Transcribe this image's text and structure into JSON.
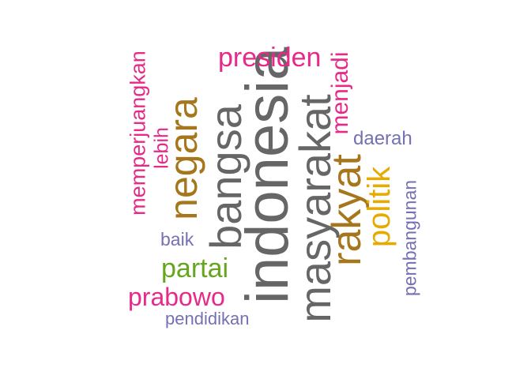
{
  "words": [
    {
      "key": "indonesia",
      "text": "indonesia",
      "color": "#666666"
    },
    {
      "key": "masyarakat",
      "text": "masyarakat",
      "color": "#666666"
    },
    {
      "key": "bangsa",
      "text": "bangsa",
      "color": "#666666"
    },
    {
      "key": "rakyat",
      "text": "rakyat",
      "color": "#a6761d"
    },
    {
      "key": "negara",
      "text": "negara",
      "color": "#a6761d"
    },
    {
      "key": "presiden",
      "text": "presiden",
      "color": "#e7298a"
    },
    {
      "key": "politik",
      "text": "politik",
      "color": "#e6ab02"
    },
    {
      "key": "partai",
      "text": "partai",
      "color": "#66a61e"
    },
    {
      "key": "prabowo",
      "text": "prabowo",
      "color": "#e7298a"
    },
    {
      "key": "menjadi",
      "text": "menjadi",
      "color": "#e7298a"
    },
    {
      "key": "memperjuangkan",
      "text": "memperjuangkan",
      "color": "#e7298a"
    },
    {
      "key": "lebih",
      "text": "lebih",
      "color": "#e7298a"
    },
    {
      "key": "pembangunan",
      "text": "pembangunan",
      "color": "#7570b3"
    },
    {
      "key": "daerah",
      "text": "daerah",
      "color": "#7570b3"
    },
    {
      "key": "baik",
      "text": "baik",
      "color": "#7570b3"
    },
    {
      "key": "pendidikan",
      "text": "pendidikan",
      "color": "#7570b3"
    }
  ]
}
